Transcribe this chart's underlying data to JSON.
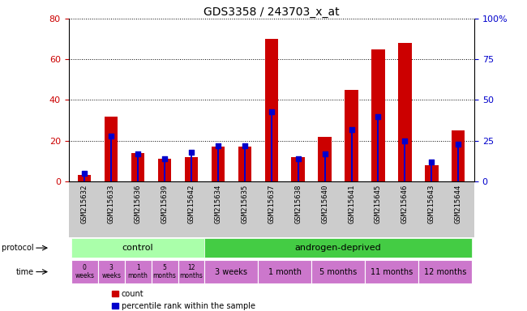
{
  "title": "GDS3358 / 243703_x_at",
  "samples": [
    "GSM215632",
    "GSM215633",
    "GSM215636",
    "GSM215639",
    "GSM215642",
    "GSM215634",
    "GSM215635",
    "GSM215637",
    "GSM215638",
    "GSM215640",
    "GSM215641",
    "GSM215645",
    "GSM215646",
    "GSM215643",
    "GSM215644"
  ],
  "count": [
    3,
    32,
    14,
    11,
    12,
    17,
    17,
    70,
    12,
    22,
    45,
    65,
    68,
    8,
    25
  ],
  "percentile": [
    5,
    28,
    17,
    14,
    18,
    22,
    22,
    43,
    14,
    17,
    32,
    40,
    25,
    12,
    23
  ],
  "ylim_left": [
    0,
    80
  ],
  "ylim_right": [
    0,
    100
  ],
  "yticks_left": [
    0,
    20,
    40,
    60,
    80
  ],
  "yticks_right": [
    0,
    25,
    50,
    75,
    100
  ],
  "bar_color_red": "#cc0000",
  "bar_color_blue": "#0000cc",
  "bg_color": "#ffffff",
  "xtick_bg_color": "#cccccc",
  "protocol_control_color": "#aaffaa",
  "protocol_androgen_color": "#44cc44",
  "time_color": "#cc77cc",
  "growth_protocol_label": "growth protocol",
  "time_label": "time",
  "control_label": "control",
  "androgen_label": "androgen-deprived",
  "time_row_control": [
    "0\nweeks",
    "3\nweeks",
    "1\nmonth",
    "5\nmonths",
    "12\nmonths"
  ],
  "time_row_androgen": [
    "3 weeks",
    "1 month",
    "5 months",
    "11 months",
    "12 months"
  ],
  "legend_count_label": "count",
  "legend_pct_label": "percentile rank within the sample"
}
